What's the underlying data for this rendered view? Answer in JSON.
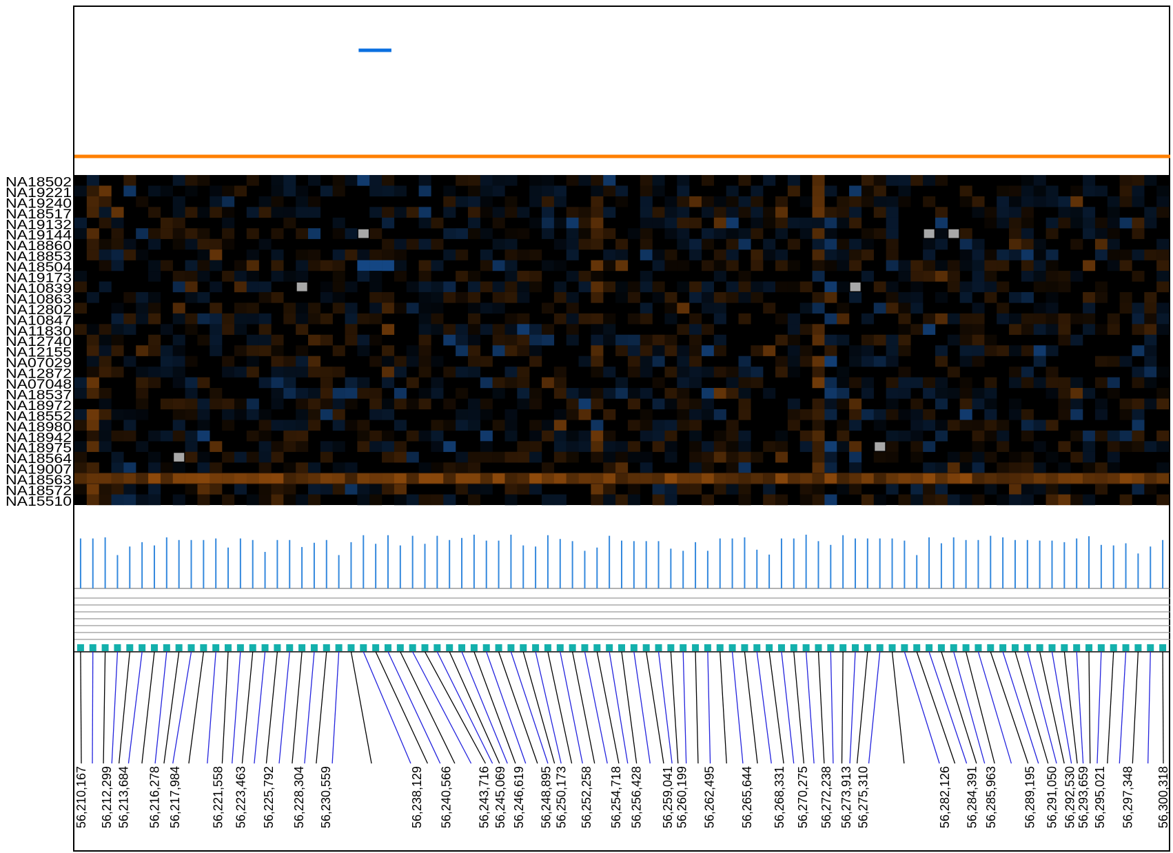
{
  "chart_data": {
    "type": "heatmap",
    "title": "",
    "xlabel": "",
    "ylabel": "",
    "samples": [
      "NA18502",
      "NA19221",
      "NA19240",
      "NA18517",
      "NA19132",
      "NA19144",
      "NA18860",
      "NA18853",
      "NA18504",
      "NA19173",
      "NA10839",
      "NA10863",
      "NA12802",
      "NA10847",
      "NA11830",
      "NA12740",
      "NA12155",
      "NA07029",
      "NA12872",
      "NA07048",
      "NA18537",
      "NA18972",
      "NA18552",
      "NA18980",
      "NA18942",
      "NA18975",
      "NA18564",
      "NA19007",
      "NA18563",
      "NA18572",
      "NA15510"
    ],
    "snp_count": 89,
    "position_labels": [
      "56,210,167",
      "56,212,299",
      "56,213,684",
      "56,216,278",
      "56,217,984",
      "56,221,558",
      "56,223,463",
      "56,225,792",
      "56,228,304",
      "56,230,559",
      "56,238,129",
      "56,240,566",
      "56,243,716",
      "56,245,069",
      "56,246,619",
      "56,248,895",
      "56,250,173",
      "56,252,258",
      "56,254,718",
      "56,256,428",
      "56,259,041",
      "56,260,199",
      "56,262,495",
      "56,265,644",
      "56,268,331",
      "56,270,275",
      "56,272,238",
      "56,273,913",
      "56,275,310",
      "56,282,126",
      "56,284,391",
      "56,285,963",
      "56,289,195",
      "56,291,050",
      "56,292,530",
      "56,293,659",
      "56,295,021",
      "56,297,348",
      "56,300,318"
    ],
    "range_start": 56210167,
    "range_end": 56300318,
    "highlight_row": "NA18563",
    "missing_cells": [
      [
        5,
        23
      ],
      [
        5,
        69
      ],
      [
        5,
        71
      ],
      [
        10,
        18
      ],
      [
        10,
        63
      ],
      [
        25,
        65
      ],
      [
        26,
        8
      ]
    ],
    "blue_run": {
      "row": 8,
      "cols": [
        23,
        24,
        25
      ]
    },
    "track_segment": {
      "start_col": 23,
      "end_col": 25
    },
    "bar_heights": [
      0.93,
      0.93,
      0.95,
      0.62,
      0.78,
      0.86,
      0.8,
      0.95,
      0.9,
      0.9,
      0.9,
      0.93,
      0.76,
      0.93,
      0.9,
      0.68,
      0.9,
      0.9,
      0.77,
      0.85,
      0.9,
      0.62,
      0.86,
      0.99,
      0.83,
      0.99,
      0.8,
      0.98,
      0.83,
      0.98,
      0.9,
      0.94,
      1.0,
      0.89,
      0.89,
      1.0,
      0.8,
      0.78,
      0.99,
      0.92,
      0.88,
      0.7,
      0.76,
      0.98,
      0.89,
      0.88,
      0.88,
      0.88,
      0.74,
      0.7,
      0.86,
      0.7,
      0.93,
      0.93,
      0.95,
      0.72,
      0.63,
      0.93,
      0.93,
      1.0,
      0.88,
      0.81,
      0.99,
      0.93,
      0.93,
      0.93,
      0.93,
      0.89,
      0.62,
      0.95,
      0.84,
      0.95,
      0.9,
      0.9,
      0.98,
      0.95,
      0.9,
      0.9,
      0.89,
      0.89,
      0.86,
      0.93,
      0.97,
      0.81,
      0.8,
      0.84,
      0.65,
      0.78,
      0.9
    ],
    "colors": {
      "background": "#000000",
      "heat_orange": "#cc6a10",
      "heat_blue": "#1a5aa8",
      "missing": "#a8a8a8",
      "track_orange": "#ff8000",
      "track_blue": "#0a6fe0",
      "bars": "#3388dd",
      "markers": "#14b0ac",
      "connector_black": "#000000",
      "connector_blue": "#2222dd",
      "guide_lines": "#999999"
    }
  }
}
